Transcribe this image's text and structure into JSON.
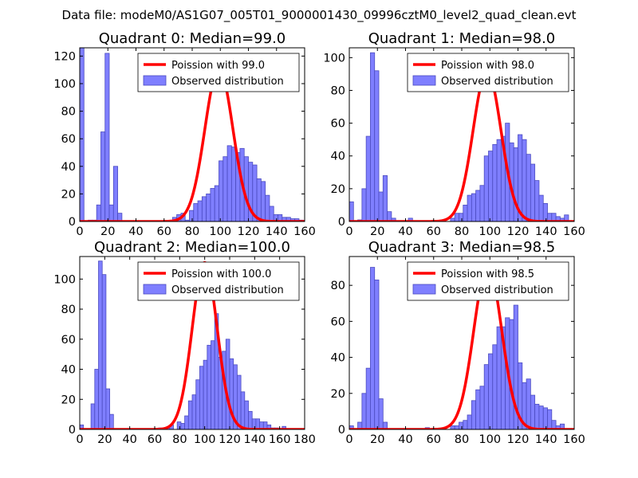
{
  "figure": {
    "suptitle": "Data file: modeM0/AS1G07_005T01_9000001430_09996cztM0_level2_quad_clean.evt",
    "colors": {
      "bar": "#7f7fff",
      "bar_edge": "#4b4bbf",
      "curve": "#ff0000"
    }
  },
  "chart_data": [
    {
      "type": "bar",
      "title": "Quadrant 0: Median=99.0",
      "median": 99.0,
      "xlim": [
        0,
        160
      ],
      "ylim": [
        0,
        126
      ],
      "xticks": [
        0,
        20,
        40,
        60,
        80,
        100,
        120,
        140,
        160
      ],
      "yticks": [
        0,
        20,
        40,
        60,
        80,
        100,
        120
      ],
      "legend": {
        "line": "Poission with 99.0",
        "bars": "Observed distribution",
        "location": "upper right"
      },
      "series": [
        {
          "name": "Observed distribution",
          "kind": "histogram",
          "bin_width": 3,
          "bins": [
            [
              0,
              126
            ],
            [
              6,
              1
            ],
            [
              9,
              1
            ],
            [
              12,
              12
            ],
            [
              15,
              65
            ],
            [
              18,
              122
            ],
            [
              21,
              12
            ],
            [
              24,
              40
            ],
            [
              27,
              6
            ],
            [
              66,
              3
            ],
            [
              69,
              5
            ],
            [
              72,
              6
            ],
            [
              75,
              1
            ],
            [
              78,
              8
            ],
            [
              81,
              13
            ],
            [
              84,
              15
            ],
            [
              87,
              18
            ],
            [
              90,
              20
            ],
            [
              93,
              24
            ],
            [
              96,
              26
            ],
            [
              99,
              44
            ],
            [
              102,
              47
            ],
            [
              105,
              55
            ],
            [
              108,
              54
            ],
            [
              111,
              50
            ],
            [
              114,
              53
            ],
            [
              117,
              47
            ],
            [
              120,
              43
            ],
            [
              123,
              41
            ],
            [
              126,
              31
            ],
            [
              129,
              29
            ],
            [
              132,
              19
            ],
            [
              135,
              11
            ],
            [
              138,
              5
            ],
            [
              141,
              5
            ],
            [
              144,
              3
            ],
            [
              147,
              3
            ],
            [
              150,
              2
            ],
            [
              153,
              2
            ],
            [
              156,
              1
            ]
          ]
        },
        {
          "name": "Poission with 99.0",
          "kind": "poisson_curve",
          "lambda": 99.0,
          "peak": 111
        }
      ]
    },
    {
      "type": "bar",
      "title": "Quadrant 1: Median=98.0",
      "median": 98.0,
      "xlim": [
        0,
        160
      ],
      "ylim": [
        0,
        106
      ],
      "xticks": [
        0,
        20,
        40,
        60,
        80,
        100,
        120,
        140,
        160
      ],
      "yticks": [
        0,
        20,
        40,
        60,
        80,
        100
      ],
      "legend": {
        "line": "Poission with 98.0",
        "bars": "Observed distribution",
        "location": "upper right"
      },
      "series": [
        {
          "name": "Observed distribution",
          "kind": "histogram",
          "bin_width": 3,
          "bins": [
            [
              0,
              12
            ],
            [
              6,
              1
            ],
            [
              9,
              20
            ],
            [
              12,
              52
            ],
            [
              15,
              103
            ],
            [
              18,
              92
            ],
            [
              21,
              18
            ],
            [
              24,
              28
            ],
            [
              27,
              6
            ],
            [
              30,
              2
            ],
            [
              42,
              2
            ],
            [
              72,
              2
            ],
            [
              75,
              5
            ],
            [
              78,
              5
            ],
            [
              81,
              10
            ],
            [
              84,
              16
            ],
            [
              87,
              17
            ],
            [
              90,
              19
            ],
            [
              93,
              22
            ],
            [
              96,
              40
            ],
            [
              99,
              43
            ],
            [
              102,
              47
            ],
            [
              105,
              50
            ],
            [
              108,
              52
            ],
            [
              111,
              60
            ],
            [
              114,
              48
            ],
            [
              117,
              45
            ],
            [
              120,
              53
            ],
            [
              123,
              50
            ],
            [
              126,
              41
            ],
            [
              129,
              35
            ],
            [
              132,
              25
            ],
            [
              135,
              16
            ],
            [
              138,
              11
            ],
            [
              141,
              5
            ],
            [
              144,
              5
            ],
            [
              147,
              3
            ],
            [
              150,
              2
            ],
            [
              153,
              4
            ]
          ]
        },
        {
          "name": "Poission with 98.0",
          "kind": "poisson_curve",
          "lambda": 98.0,
          "peak": 92
        }
      ]
    },
    {
      "type": "bar",
      "title": "Quadrant 2: Median=100.0",
      "median": 100.0,
      "xlim": [
        0,
        180
      ],
      "ylim": [
        0,
        115
      ],
      "xticks": [
        0,
        20,
        40,
        60,
        80,
        100,
        120,
        140,
        160,
        180
      ],
      "yticks": [
        0,
        20,
        40,
        60,
        80,
        100
      ],
      "legend": {
        "line": "Poission with 100.0",
        "bars": "Observed distribution",
        "location": "upper right"
      },
      "series": [
        {
          "name": "Observed distribution",
          "kind": "histogram",
          "bin_width": 3,
          "bins": [
            [
              0,
              3
            ],
            [
              9,
              17
            ],
            [
              12,
              40
            ],
            [
              15,
              112
            ],
            [
              18,
              103
            ],
            [
              21,
              27
            ],
            [
              24,
              10
            ],
            [
              63,
              1
            ],
            [
              66,
              1
            ],
            [
              69,
              1
            ],
            [
              72,
              3
            ],
            [
              78,
              5
            ],
            [
              81,
              4
            ],
            [
              84,
              9
            ],
            [
              87,
              19
            ],
            [
              90,
              23
            ],
            [
              93,
              33
            ],
            [
              96,
              42
            ],
            [
              99,
              46
            ],
            [
              102,
              56
            ],
            [
              105,
              59
            ],
            [
              108,
              77
            ],
            [
              111,
              48
            ],
            [
              114,
              52
            ],
            [
              117,
              60
            ],
            [
              120,
              47
            ],
            [
              123,
              43
            ],
            [
              126,
              36
            ],
            [
              129,
              25
            ],
            [
              132,
              19
            ],
            [
              135,
              12
            ],
            [
              138,
              7
            ],
            [
              141,
              7
            ],
            [
              144,
              5
            ],
            [
              147,
              5
            ],
            [
              150,
              3
            ],
            [
              153,
              1
            ],
            [
              156,
              1
            ],
            [
              162,
              2
            ]
          ]
        },
        {
          "name": "Poission with 100.0",
          "kind": "poisson_curve",
          "lambda": 100.0,
          "peak": 111
        }
      ]
    },
    {
      "type": "bar",
      "title": "Quadrant 3: Median=98.5",
      "median": 98.5,
      "xlim": [
        0,
        160
      ],
      "ylim": [
        0,
        96
      ],
      "xticks": [
        0,
        20,
        40,
        60,
        80,
        100,
        120,
        140,
        160
      ],
      "yticks": [
        0,
        20,
        40,
        60,
        80
      ],
      "legend": {
        "line": "Poission with 98.5",
        "bars": "Observed distribution",
        "location": "upper right"
      },
      "series": [
        {
          "name": "Observed distribution",
          "kind": "histogram",
          "bin_width": 3,
          "bins": [
            [
              0,
              2
            ],
            [
              6,
              4
            ],
            [
              9,
              20
            ],
            [
              12,
              34
            ],
            [
              15,
              90
            ],
            [
              18,
              83
            ],
            [
              21,
              17
            ],
            [
              24,
              4
            ],
            [
              54,
              1
            ],
            [
              72,
              2
            ],
            [
              75,
              2
            ],
            [
              78,
              4
            ],
            [
              81,
              5
            ],
            [
              84,
              8
            ],
            [
              87,
              16
            ],
            [
              90,
              22
            ],
            [
              93,
              24
            ],
            [
              96,
              36
            ],
            [
              99,
              42
            ],
            [
              102,
              47
            ],
            [
              105,
              57
            ],
            [
              108,
              57
            ],
            [
              111,
              62
            ],
            [
              114,
              61
            ],
            [
              117,
              69
            ],
            [
              120,
              37
            ],
            [
              123,
              26
            ],
            [
              126,
              28
            ],
            [
              129,
              19
            ],
            [
              132,
              14
            ],
            [
              135,
              13
            ],
            [
              138,
              12
            ],
            [
              141,
              11
            ],
            [
              144,
              5
            ],
            [
              147,
              2
            ],
            [
              150,
              3
            ]
          ]
        },
        {
          "name": "Poission with 98.5",
          "kind": "poisson_curve",
          "lambda": 98.5,
          "peak": 91
        }
      ]
    }
  ]
}
